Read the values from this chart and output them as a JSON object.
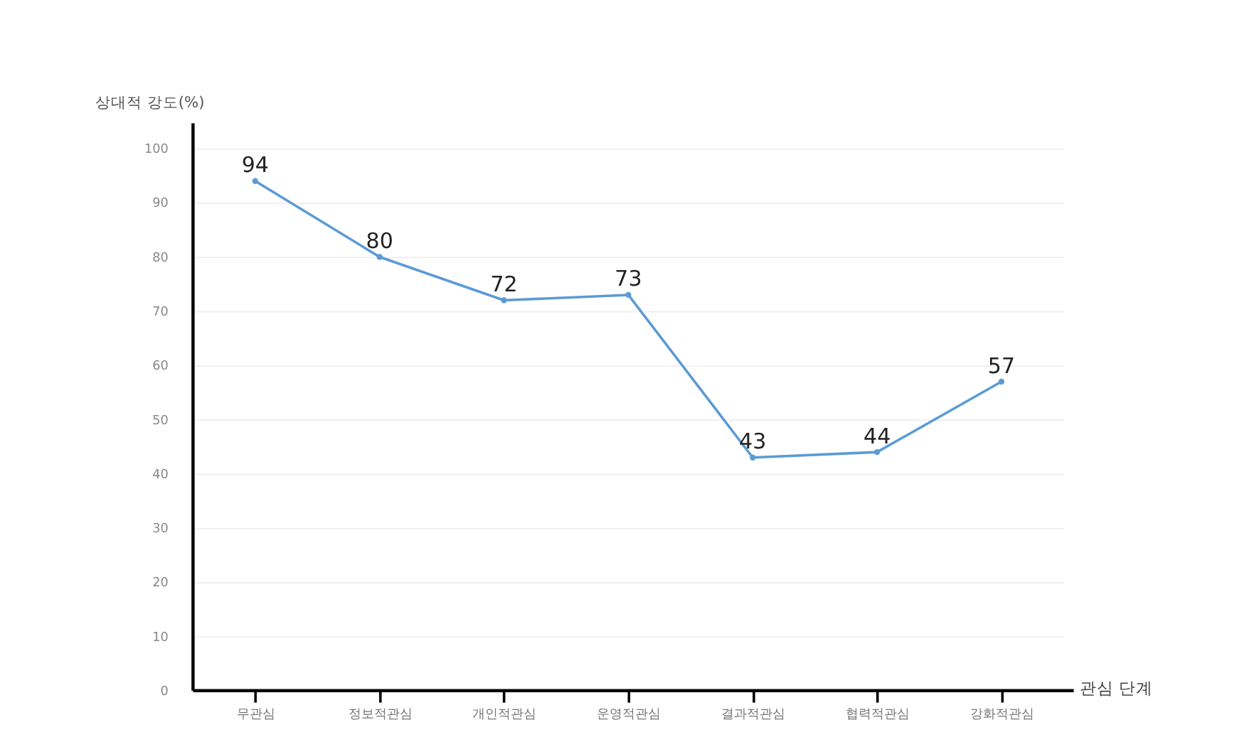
{
  "chart_data": {
    "type": "line",
    "categories": [
      "무관심",
      "정보적관심",
      "개인적관심",
      "운영적관심",
      "결과적관심",
      "협력적관심",
      "강화적관심"
    ],
    "series": [
      {
        "color": "#5b9bd5",
        "values": [
          94,
          80,
          72,
          73,
          43,
          44,
          57
        ]
      }
    ],
    "ylabel": "상대적 강도(%)",
    "xlabel": "관심 단계",
    "ylim": [
      0,
      100
    ],
    "yticks": [
      0,
      10,
      20,
      30,
      40,
      50,
      60,
      70,
      80,
      90,
      100
    ],
    "grid": "y",
    "marker": "circle",
    "line_style": "solid",
    "data_labels": true
  }
}
